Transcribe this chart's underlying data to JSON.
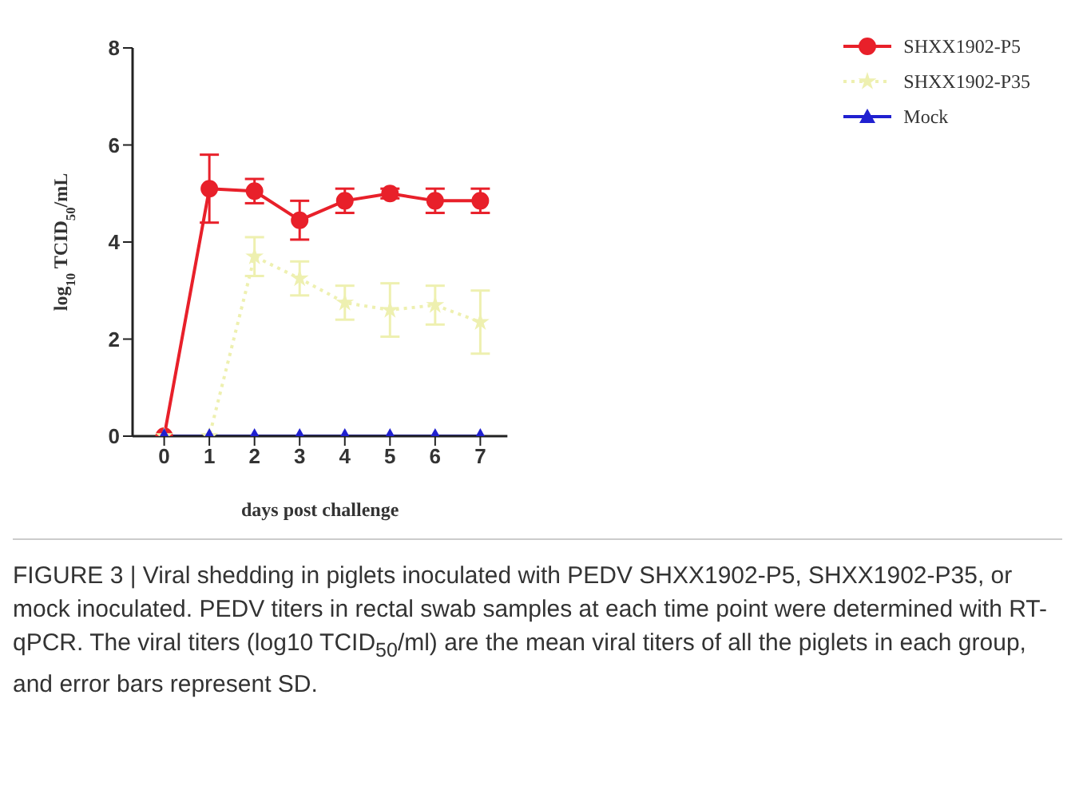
{
  "chart_data": {
    "type": "line",
    "xlabel": "days post challenge",
    "ylabel": "log$_{10}$ TCID$_{50}$/mL",
    "x": [
      0,
      1,
      2,
      3,
      4,
      5,
      6,
      7
    ],
    "xlim": [
      -0.7,
      7.6
    ],
    "xticks": [
      0,
      1,
      2,
      3,
      4,
      5,
      6,
      7
    ],
    "ylim": [
      0,
      8
    ],
    "yticks": [
      0,
      2,
      4,
      6,
      8
    ],
    "grid": false,
    "legend": "top right",
    "series": [
      {
        "name": "SHXX1902-P5",
        "color": "#e8202a",
        "marker": "circle",
        "line_style": "solid",
        "values": [
          0,
          5.1,
          5.05,
          4.45,
          4.85,
          5.0,
          4.85,
          4.85
        ],
        "errors": [
          null,
          0.7,
          0.25,
          0.4,
          0.25,
          0.1,
          0.25,
          0.25
        ]
      },
      {
        "name": "SHXX1902-P35",
        "color": "#eef0b0",
        "marker": "star",
        "line_style": "dotted",
        "values": [
          0,
          0,
          3.7,
          3.25,
          2.75,
          2.6,
          2.7,
          2.35
        ],
        "errors": [
          null,
          null,
          0.4,
          0.35,
          0.35,
          0.55,
          0.4,
          0.65
        ]
      },
      {
        "name": "Mock",
        "color": "#2020d0",
        "marker": "triangle",
        "line_style": "solid",
        "values": [
          0,
          0,
          0,
          0,
          0,
          0,
          0,
          0
        ]
      }
    ],
    "annotations": [
      "FIGURE 3 | Viral shedding in piglets inoculated with PEDV SHXX1902-P5, SHXX1902-P35, or mock inoculated. PEDV titers in rectal swab samples at each time point were determined with RT-qPCR. The viral titers (log10 TCID$_{50}$/ml) are the mean viral titers of all the piglets in each group, and error bars represent SD."
    ]
  }
}
